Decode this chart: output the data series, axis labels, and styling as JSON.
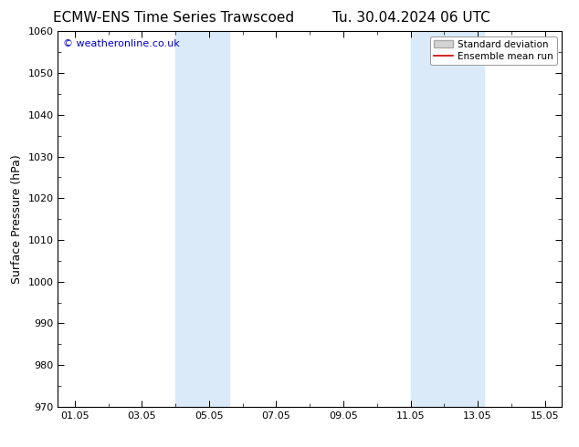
{
  "title_left": "ECMW-ENS Time Series Trawscoed",
  "title_right": "Tu. 30.04.2024 06 UTC",
  "ylabel": "Surface Pressure (hPa)",
  "ylim": [
    970,
    1060
  ],
  "ytick_major": 10,
  "ytick_minor": 5,
  "xtick_labels": [
    "01.05",
    "03.05",
    "05.05",
    "07.05",
    "09.05",
    "11.05",
    "13.05",
    "15.05"
  ],
  "xtick_positions": [
    1,
    3,
    5,
    7,
    9,
    11,
    13,
    15
  ],
  "xlim": [
    0.5,
    15.5
  ],
  "shaded_bands": [
    {
      "x_start": 4.0,
      "x_end": 5.6
    },
    {
      "x_start": 11.0,
      "x_end": 13.2
    }
  ],
  "shaded_color": "#daeaf8",
  "watermark_text": "© weatheronline.co.uk",
  "watermark_color": "#0000cc",
  "legend_std_label": "Standard deviation",
  "legend_mean_label": "Ensemble mean run",
  "legend_std_facecolor": "#d4d4d4",
  "legend_std_edgecolor": "#aaaaaa",
  "legend_mean_color": "#cc0000",
  "background_color": "#ffffff",
  "title_fontsize": 11,
  "axis_label_fontsize": 9,
  "tick_fontsize": 8,
  "watermark_fontsize": 8,
  "legend_fontsize": 7.5
}
